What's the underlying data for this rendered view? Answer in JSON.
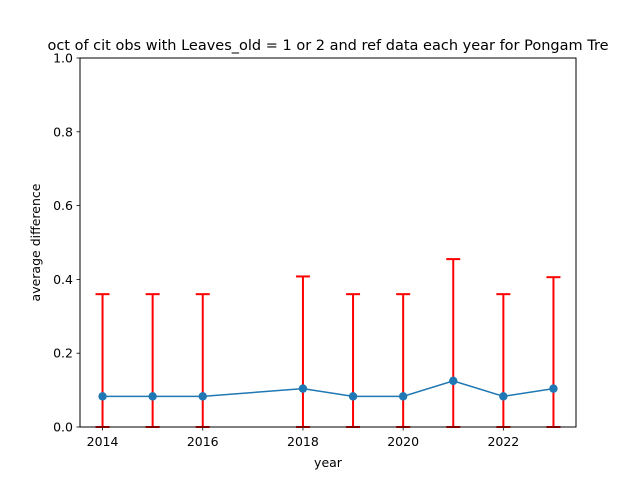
{
  "chart_data": {
    "type": "line",
    "title": "oct of cit obs with Leaves_old = 1 or 2 and ref data each year for Pongam Tre",
    "xlabel": "year",
    "ylabel": "average difference",
    "xlim": [
      2013.55,
      2023.45
    ],
    "ylim": [
      0.0,
      1.0
    ],
    "xticks": [
      2014,
      2016,
      2018,
      2020,
      2022
    ],
    "xtick_labels": [
      "2014",
      "2016",
      "2018",
      "2020",
      "2022"
    ],
    "yticks": [
      0.0,
      0.2,
      0.4,
      0.6,
      0.8,
      1.0
    ],
    "ytick_labels": [
      "0.0",
      "0.2",
      "0.4",
      "0.6",
      "0.8",
      "1.0"
    ],
    "grid": false,
    "series": [
      {
        "color": "#1f77b4",
        "marker": "circle",
        "x": [
          2014,
          2015,
          2016,
          2018,
          2019,
          2020,
          2021,
          2022,
          2023
        ],
        "y": [
          0.083,
          0.083,
          0.083,
          0.104,
          0.083,
          0.083,
          0.125,
          0.083,
          0.104
        ],
        "error_color": "#ff0000",
        "error_lower": [
          0.0,
          0.0,
          0.0,
          0.0,
          0.0,
          0.0,
          0.0,
          0.0,
          0.0
        ],
        "error_upper": [
          0.36,
          0.36,
          0.36,
          0.408,
          0.36,
          0.36,
          0.455,
          0.36,
          0.406
        ]
      }
    ]
  }
}
